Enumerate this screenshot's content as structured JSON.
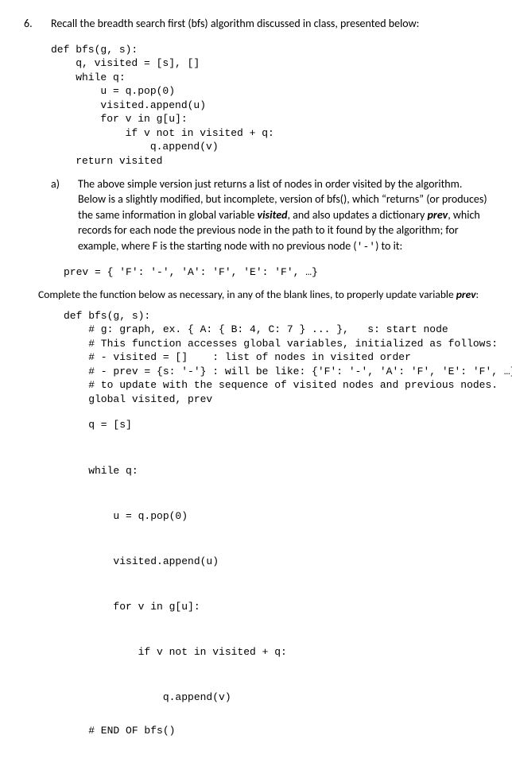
{
  "question_number": "6.",
  "intro": "Recall the breadth search first (bfs) algorithm discussed in class, presented below:",
  "code1": "def bfs(g, s):\n    q, visited = [s], []\n    while q:\n        u = q.pop(0)\n        visited.append(u)\n        for v in g[u]:\n            if v not in visited + q:\n                q.append(v)\n    return visited",
  "part_a_label": "a)",
  "part_a_text_1": "The above simple version just returns a list of nodes in order visited by the algorithm.  Below is a slightly modified, but incomplete, version of bfs(), which “returns” (or produces) the same information in global variable ",
  "visited_word": "visited",
  "part_a_text_2": ", and also updates a dictionary ",
  "prev_word": "prev",
  "part_a_text_3": ", which records for each node the previous node in the path to it found by the algorithm; for example, where F is the starting node with no previous node (",
  "dash_code": "'-'",
  "part_a_text_4": ") to it:",
  "prev_example": "prev = { 'F': '-', 'A': 'F', 'E': 'F', …}",
  "complete_instr_1": "Complete the function below as necessary, in any of the blank lines, to properly update variable ",
  "complete_instr_2": ":",
  "code2_head": "def bfs(g, s):\n    # g: graph, ex. { A: { B: 4, C: 7 } ... },   s: start node\n    # This function accesses global variables, initialized as follows:\n    # - visited = []    : list of nodes in visited order\n    # - prev = {s: '-'} : will be like: {'F': '-', 'A': 'F', 'E': 'F', …}\n    # to update with the sequence of visited nodes and previous nodes.\n    global visited, prev",
  "code2_body": "    q = [s]\n\n    while q:\n\n        u = q.pop(0)\n\n        visited.append(u)\n\n        for v in g[u]:\n\n            if v not in visited + q:\n\n                q.append(v)",
  "code2_end": "    # END OF bfs()"
}
